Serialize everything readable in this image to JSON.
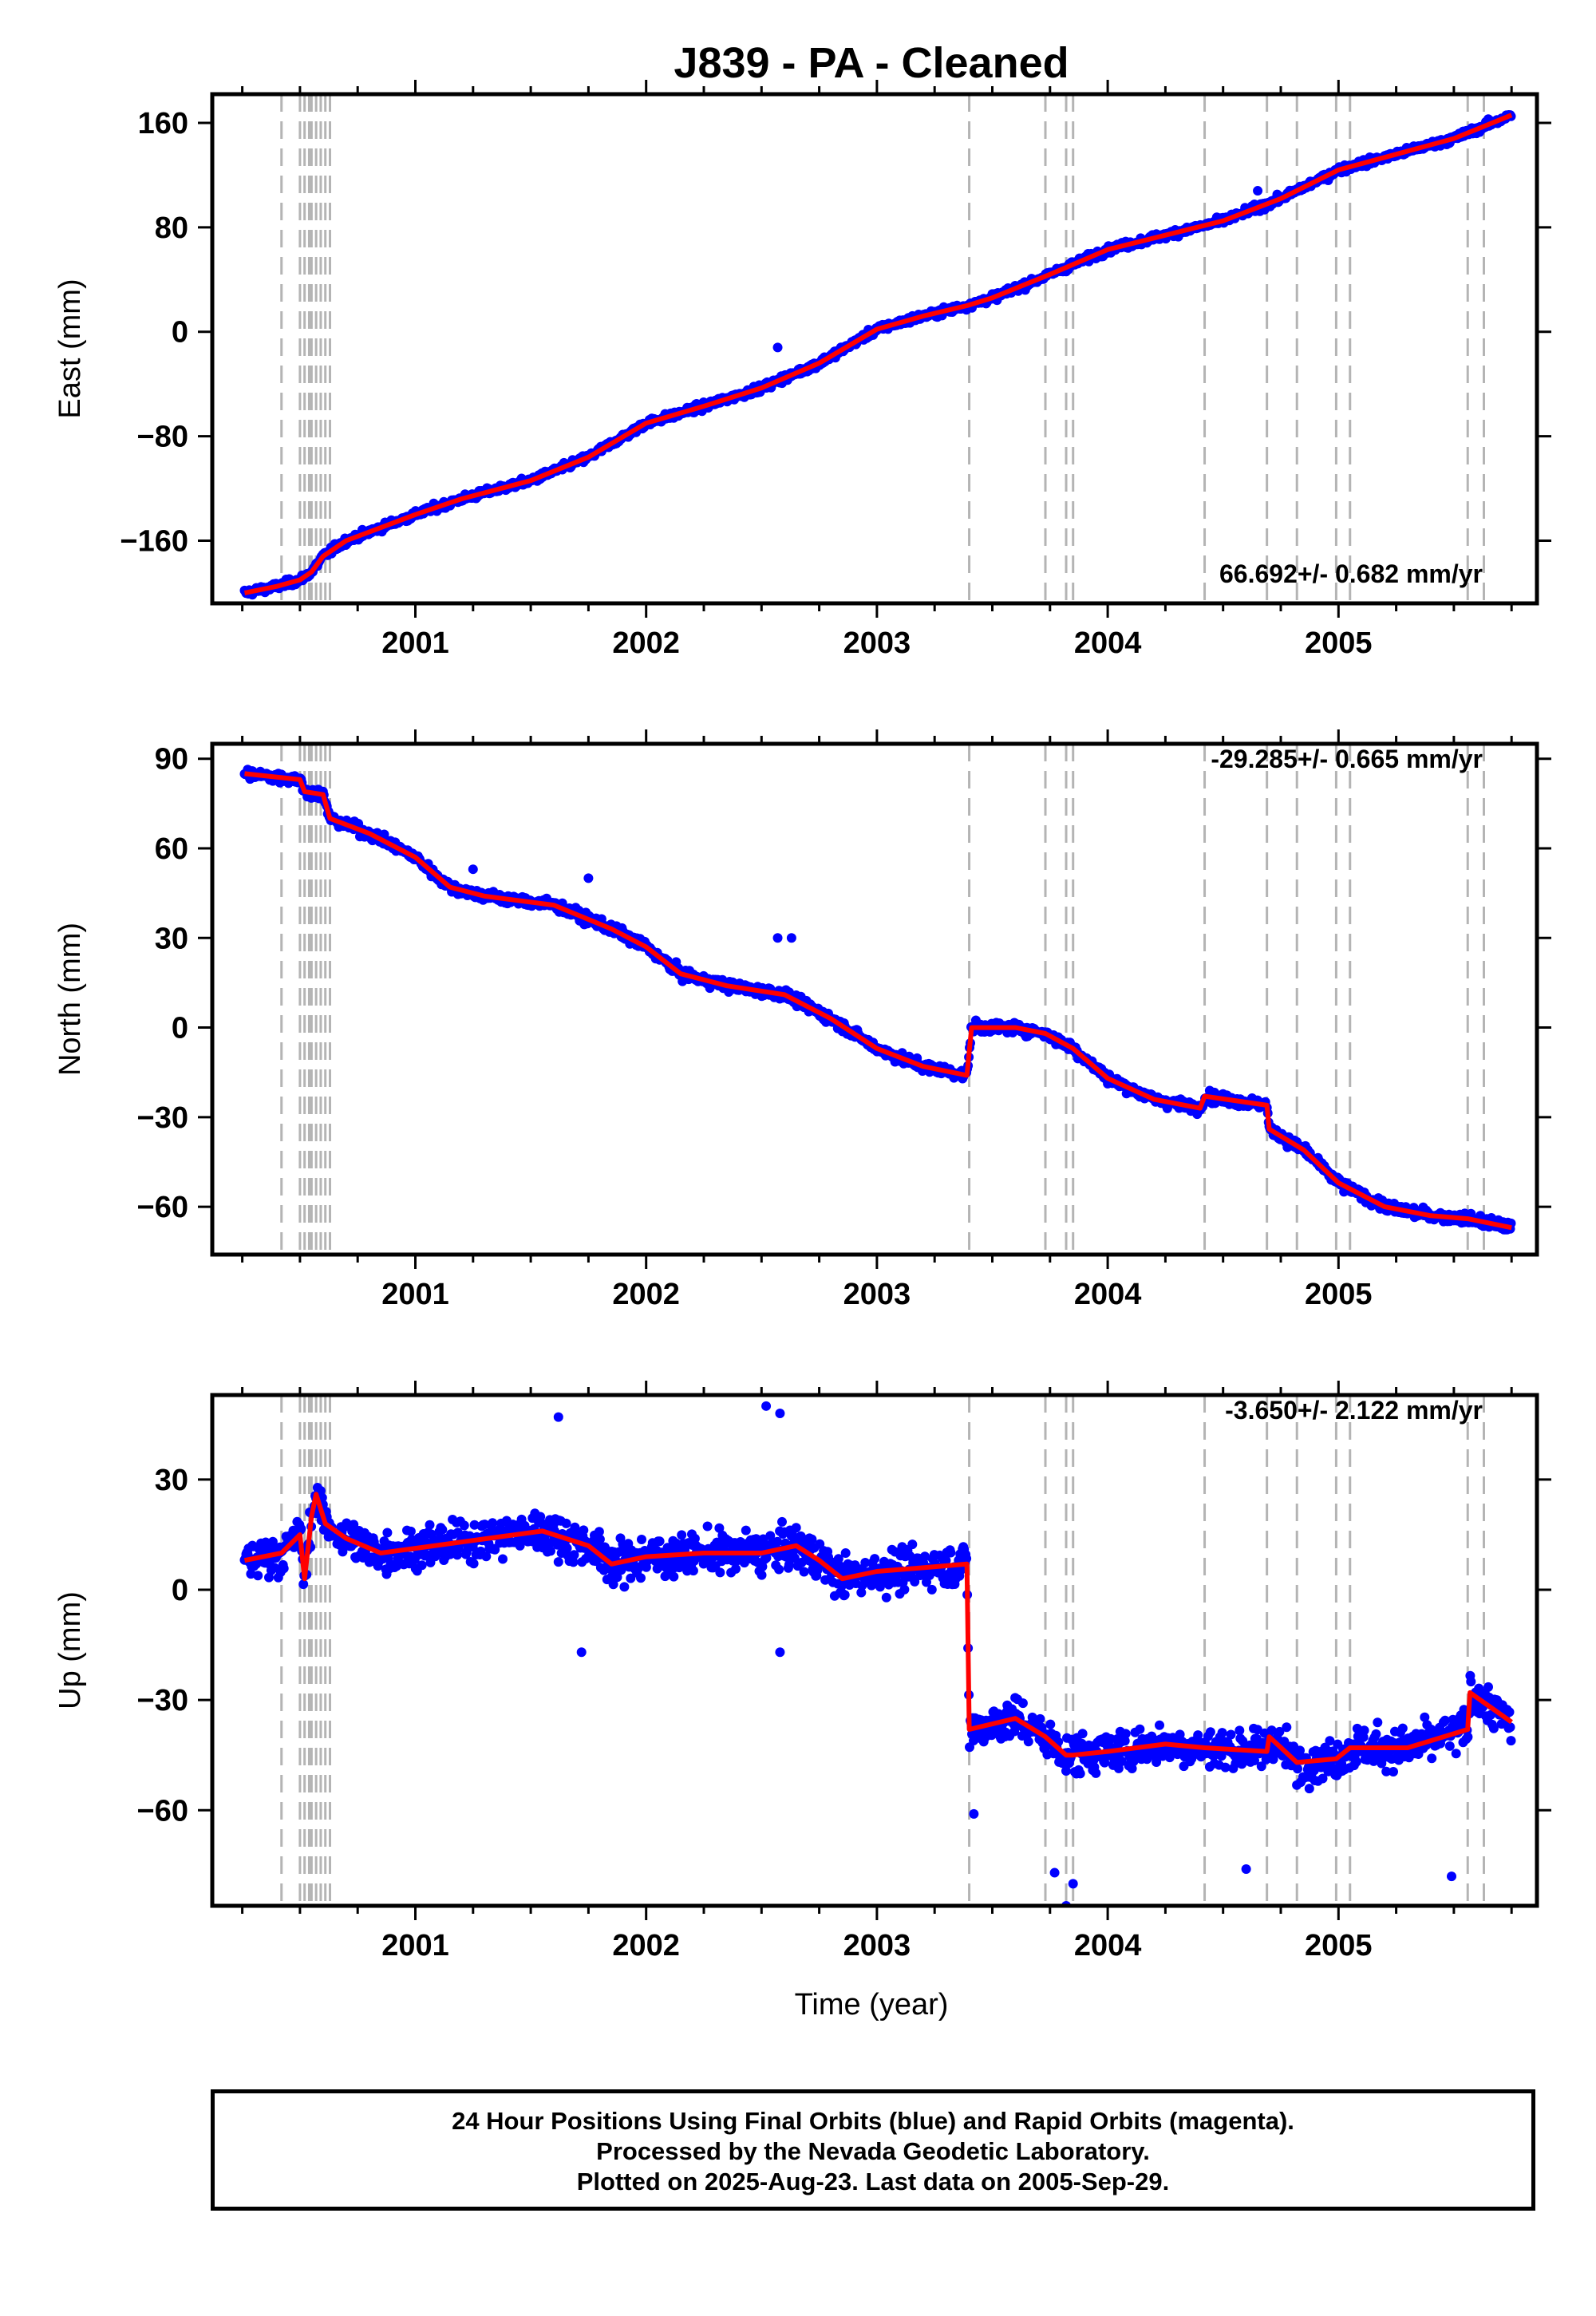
{
  "title": "J839  - PA - Cleaned",
  "x_axis_label": "Time (year)",
  "footer": {
    "line1": "24 Hour Positions Using Final Orbits (blue) and Rapid Orbits (magenta).",
    "line2": "Processed by the Nevada Geodetic Laboratory.",
    "line3": "Plotted on 2025-Aug-23. Last data on 2005-Sep-29."
  },
  "colors": {
    "data": "#0000ff",
    "model": "#ff0000",
    "events": "#b4b4b4",
    "frame": "#000000"
  },
  "chart_data": [
    {
      "type": "scatter",
      "component": "East",
      "ylabel": "East (mm)",
      "rate_label": "66.692+/- 0.682 mm/yr",
      "xlim": [
        2000.12,
        2005.86
      ],
      "ylim": [
        -208,
        182
      ],
      "xticks": [
        2001,
        2002,
        2003,
        2004,
        2005
      ],
      "yticks": [
        -160,
        -80,
        0,
        80,
        160
      ],
      "event_lines": [
        2000.42,
        2000.5,
        2000.52,
        2000.54,
        2000.55,
        2000.57,
        2000.59,
        2000.61,
        2000.63,
        2003.4,
        2003.73,
        2003.82,
        2003.85,
        2004.42,
        2004.69,
        2004.82,
        2004.99,
        2005.05,
        2005.56,
        2005.63
      ],
      "model": [
        [
          2000.26,
          -200
        ],
        [
          2000.4,
          -195
        ],
        [
          2000.5,
          -190
        ],
        [
          2000.55,
          -184
        ],
        [
          2000.6,
          -172
        ],
        [
          2000.7,
          -160
        ],
        [
          2001.0,
          -140
        ],
        [
          2001.2,
          -128
        ],
        [
          2001.5,
          -114
        ],
        [
          2001.75,
          -96
        ],
        [
          2002.0,
          -70
        ],
        [
          2002.25,
          -57
        ],
        [
          2002.5,
          -43
        ],
        [
          2002.75,
          -24
        ],
        [
          2003.0,
          2
        ],
        [
          2003.2,
          12
        ],
        [
          2003.39,
          20
        ],
        [
          2003.5,
          26
        ],
        [
          2003.75,
          44
        ],
        [
          2004.0,
          63
        ],
        [
          2004.25,
          74
        ],
        [
          2004.5,
          85
        ],
        [
          2004.75,
          102
        ],
        [
          2005.0,
          124
        ],
        [
          2005.25,
          136
        ],
        [
          2005.5,
          148
        ],
        [
          2005.75,
          166
        ]
      ],
      "noise_sd": 3.5,
      "outliers": [
        [
          2002.57,
          -12
        ],
        [
          2004.65,
          108
        ]
      ]
    },
    {
      "type": "scatter",
      "component": "North",
      "ylabel": "North (mm)",
      "rate_label": "-29.285+/- 0.665 mm/yr",
      "xlim": [
        2000.12,
        2005.86
      ],
      "ylim": [
        -76,
        95
      ],
      "xticks": [
        2001,
        2002,
        2003,
        2004,
        2005
      ],
      "yticks": [
        -60,
        -30,
        0,
        30,
        60,
        90
      ],
      "event_lines": [
        2000.42,
        2000.5,
        2000.52,
        2000.54,
        2000.55,
        2000.57,
        2000.59,
        2000.61,
        2000.63,
        2003.4,
        2003.73,
        2003.82,
        2003.85,
        2004.42,
        2004.69,
        2004.82,
        2004.99,
        2005.05,
        2005.56,
        2005.63
      ],
      "model": [
        [
          2000.26,
          85
        ],
        [
          2000.5,
          83
        ],
        [
          2000.52,
          79
        ],
        [
          2000.6,
          78
        ],
        [
          2000.63,
          70
        ],
        [
          2000.8,
          65
        ],
        [
          2001.0,
          57
        ],
        [
          2001.15,
          47
        ],
        [
          2001.3,
          44
        ],
        [
          2001.6,
          41
        ],
        [
          2001.85,
          33
        ],
        [
          2002.0,
          27
        ],
        [
          2002.15,
          18
        ],
        [
          2002.35,
          14
        ],
        [
          2002.6,
          11
        ],
        [
          2002.8,
          3
        ],
        [
          2003.0,
          -7
        ],
        [
          2003.2,
          -13
        ],
        [
          2003.39,
          -16
        ],
        [
          2003.41,
          0
        ],
        [
          2003.6,
          0
        ],
        [
          2003.73,
          -2
        ],
        [
          2003.85,
          -7
        ],
        [
          2004.0,
          -17
        ],
        [
          2004.2,
          -24
        ],
        [
          2004.4,
          -27
        ],
        [
          2004.42,
          -23
        ],
        [
          2004.69,
          -26
        ],
        [
          2004.7,
          -34
        ],
        [
          2004.85,
          -41
        ],
        [
          2005.0,
          -52
        ],
        [
          2005.2,
          -60
        ],
        [
          2005.4,
          -63
        ],
        [
          2005.56,
          -64
        ],
        [
          2005.75,
          -67
        ]
      ],
      "noise_sd": 2.2,
      "outliers": [
        [
          2002.57,
          30
        ],
        [
          2002.63,
          30
        ],
        [
          2001.25,
          53
        ],
        [
          2001.75,
          50
        ]
      ]
    },
    {
      "type": "scatter",
      "component": "Up",
      "ylabel": "Up (mm)",
      "rate_label": "-3.650+/- 2.122 mm/yr",
      "xlim": [
        2000.12,
        2005.86
      ],
      "ylim": [
        -86,
        53
      ],
      "xticks": [
        2001,
        2002,
        2003,
        2004,
        2005
      ],
      "yticks": [
        -60,
        -30,
        0,
        30
      ],
      "event_lines": [
        2000.42,
        2000.5,
        2000.52,
        2000.54,
        2000.55,
        2000.57,
        2000.59,
        2000.61,
        2000.63,
        2003.4,
        2003.73,
        2003.82,
        2003.85,
        2004.42,
        2004.69,
        2004.82,
        2004.99,
        2005.05,
        2005.56,
        2005.63
      ],
      "model": [
        [
          2000.26,
          8
        ],
        [
          2000.42,
          10
        ],
        [
          2000.5,
          15
        ],
        [
          2000.52,
          3
        ],
        [
          2000.55,
          20
        ],
        [
          2000.57,
          26
        ],
        [
          2000.61,
          18
        ],
        [
          2000.7,
          14
        ],
        [
          2000.85,
          10
        ],
        [
          2001.2,
          13
        ],
        [
          2001.55,
          16
        ],
        [
          2001.75,
          12
        ],
        [
          2001.85,
          7
        ],
        [
          2002.0,
          9
        ],
        [
          2002.25,
          10
        ],
        [
          2002.5,
          10
        ],
        [
          2002.65,
          12
        ],
        [
          2002.75,
          8
        ],
        [
          2002.85,
          3
        ],
        [
          2003.0,
          5
        ],
        [
          2003.2,
          6
        ],
        [
          2003.39,
          7
        ],
        [
          2003.4,
          -38
        ],
        [
          2003.6,
          -35
        ],
        [
          2003.73,
          -40
        ],
        [
          2003.82,
          -45
        ],
        [
          2003.85,
          -45
        ],
        [
          2004.0,
          -44
        ],
        [
          2004.25,
          -42
        ],
        [
          2004.42,
          -43
        ],
        [
          2004.69,
          -44
        ],
        [
          2004.7,
          -40
        ],
        [
          2004.82,
          -47
        ],
        [
          2004.99,
          -46
        ],
        [
          2005.05,
          -43
        ],
        [
          2005.3,
          -43
        ],
        [
          2005.56,
          -38
        ],
        [
          2005.57,
          -28
        ],
        [
          2005.75,
          -36
        ]
      ],
      "noise_sd": 7,
      "outliers": [
        [
          2002.52,
          50
        ],
        [
          2002.58,
          48
        ],
        [
          2001.62,
          47
        ],
        [
          2003.82,
          -86
        ],
        [
          2003.77,
          -77
        ],
        [
          2003.85,
          -80
        ],
        [
          2005.49,
          -78
        ],
        [
          2004.6,
          -76
        ],
        [
          2002.58,
          -17
        ],
        [
          2001.72,
          -17
        ],
        [
          2003.42,
          -61
        ]
      ]
    }
  ]
}
